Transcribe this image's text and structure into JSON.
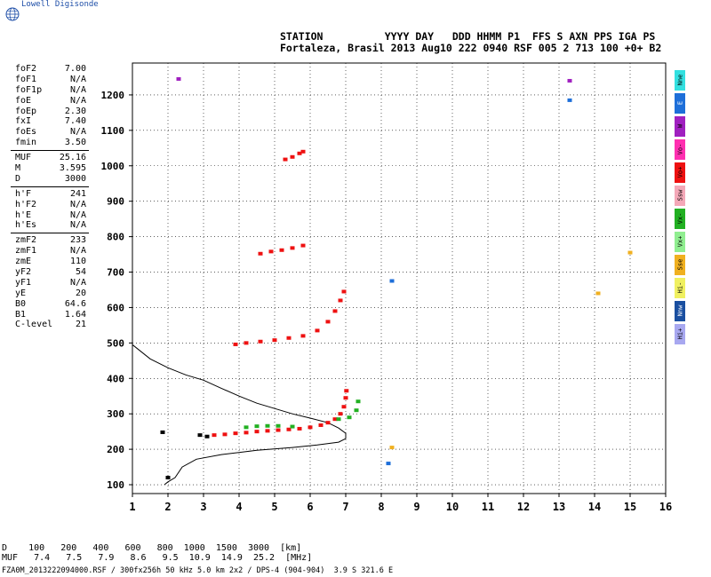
{
  "brand": "Lowell Digisonde",
  "header": {
    "line1": "STATION          YYYY DAY   DDD HHMM P1  FFS S AXN PPS IGA PS",
    "line2": "Fortaleza, Brasil 2013 Aug10 222 0940 RSF 005 2 713 100 +0+ B2"
  },
  "params": [
    {
      "group": [
        {
          "label": "foF2",
          "value": "7.00"
        },
        {
          "label": "foF1",
          "value": "N/A"
        },
        {
          "label": "foF1p",
          "value": "N/A"
        },
        {
          "label": "foE",
          "value": "N/A"
        },
        {
          "label": "foEp",
          "value": "2.30"
        },
        {
          "label": "fxI",
          "value": "7.40"
        },
        {
          "label": "foEs",
          "value": "N/A"
        },
        {
          "label": "fmin",
          "value": "3.50"
        }
      ]
    },
    {
      "group": [
        {
          "label": "MUF",
          "value": "25.16"
        },
        {
          "label": "M",
          "value": "3.595"
        },
        {
          "label": "D",
          "value": "3000"
        }
      ]
    },
    {
      "group": [
        {
          "label": "h'F",
          "value": "241"
        },
        {
          "label": "h'F2",
          "value": "N/A"
        },
        {
          "label": "h'E",
          "value": "N/A"
        },
        {
          "label": "h'Es",
          "value": "N/A"
        }
      ]
    },
    {
      "group": [
        {
          "label": "zmF2",
          "value": "233"
        },
        {
          "label": "zmF1",
          "value": "N/A"
        },
        {
          "label": "zmE",
          "value": "110"
        },
        {
          "label": "yF2",
          "value": "54"
        },
        {
          "label": "yF1",
          "value": "N/A"
        },
        {
          "label": "yE",
          "value": "20"
        },
        {
          "label": "B0",
          "value": "64.6"
        },
        {
          "label": "B1",
          "value": "1.64"
        },
        {
          "label": "C-level",
          "value": "21"
        }
      ]
    }
  ],
  "legend": [
    {
      "label": "Nne",
      "color": "#33e0e0"
    },
    {
      "label": "E",
      "color": "#1e6fd9"
    },
    {
      "label": "W",
      "color": "#a020c0"
    },
    {
      "label": "Vo-",
      "color": "#ff2fb0"
    },
    {
      "label": "Vo+",
      "color": "#ee1111"
    },
    {
      "label": "Ssw",
      "color": "#f4a8b8"
    },
    {
      "label": "Vx-",
      "color": "#22b022"
    },
    {
      "label": "Vx+",
      "color": "#90ee90"
    },
    {
      "label": "Sse",
      "color": "#f0b020"
    },
    {
      "label": "Hi-",
      "color": "#f0f060"
    },
    {
      "label": "Nnw",
      "color": "#1a4fa0"
    },
    {
      "label": "Hi+",
      "color": "#a8a8f0"
    }
  ],
  "bottom": {
    "d_row": "D    100   200   400   600   800  1000  1500  3000  [km]",
    "muf_row": "MUF   7.4   7.5   7.9   8.6   9.5  10.9  14.9  25.2  [MHz]"
  },
  "footer": "FZA0M_2013222094000.RSF / 300fx256h 50 kHz 5.0 km 2x2 / DPS-4 (904-904)  3.9 S 321.6 E",
  "chart_data": {
    "type": "scatter",
    "title": "",
    "xlabel": "",
    "ylabel": "",
    "xlim": [
      1,
      16
    ],
    "ylim": [
      75,
      1290
    ],
    "xticks": [
      1,
      2,
      3,
      4,
      5,
      6,
      7,
      8,
      9,
      10,
      11,
      12,
      13,
      14,
      15,
      16
    ],
    "yticks": [
      100,
      200,
      300,
      400,
      500,
      600,
      700,
      800,
      900,
      1000,
      1100,
      1200
    ],
    "grid": true,
    "series": [
      {
        "color": "#ee1111",
        "points": [
          [
            3.3,
            240
          ],
          [
            3.6,
            242
          ],
          [
            3.9,
            245
          ],
          [
            4.2,
            247
          ],
          [
            4.5,
            250
          ],
          [
            4.8,
            252
          ],
          [
            5.1,
            254
          ],
          [
            5.4,
            256
          ],
          [
            5.7,
            258
          ],
          [
            6.0,
            262
          ],
          [
            6.3,
            268
          ],
          [
            6.5,
            275
          ],
          [
            6.7,
            285
          ],
          [
            6.85,
            300
          ],
          [
            6.95,
            320
          ],
          [
            7.0,
            345
          ],
          [
            7.02,
            365
          ]
        ]
      },
      {
        "color": "#22b022",
        "points": [
          [
            4.2,
            262
          ],
          [
            4.5,
            265
          ],
          [
            4.8,
            266
          ],
          [
            5.1,
            266
          ],
          [
            5.5,
            264
          ],
          [
            6.8,
            285
          ],
          [
            7.1,
            290
          ],
          [
            7.3,
            310
          ],
          [
            7.35,
            335
          ]
        ]
      },
      {
        "color": "#ee1111",
        "points": [
          [
            3.9,
            496
          ],
          [
            4.2,
            500
          ],
          [
            4.6,
            504
          ],
          [
            5.0,
            508
          ],
          [
            5.4,
            514
          ],
          [
            5.8,
            520
          ],
          [
            6.2,
            535
          ],
          [
            6.5,
            560
          ],
          [
            6.7,
            590
          ],
          [
            6.85,
            620
          ],
          [
            6.95,
            645
          ]
        ]
      },
      {
        "color": "#ee1111",
        "points": [
          [
            4.6,
            752
          ],
          [
            4.9,
            758
          ],
          [
            5.2,
            762
          ],
          [
            5.5,
            768
          ],
          [
            5.8,
            775
          ]
        ]
      },
      {
        "color": "#ee1111",
        "points": [
          [
            5.3,
            1018
          ],
          [
            5.5,
            1025
          ],
          [
            5.7,
            1035
          ],
          [
            5.8,
            1040
          ]
        ]
      },
      {
        "color": "#a020c0",
        "points": [
          [
            2.3,
            1245
          ],
          [
            13.3,
            1240
          ]
        ]
      },
      {
        "color": "#1e6fd9",
        "points": [
          [
            13.3,
            1185
          ],
          [
            8.2,
            160
          ],
          [
            8.3,
            675
          ]
        ]
      },
      {
        "color": "#f0b020",
        "points": [
          [
            15.0,
            755
          ],
          [
            14.1,
            640
          ],
          [
            8.3,
            205
          ]
        ]
      },
      {
        "color": "#000000",
        "points": [
          [
            1.85,
            248
          ],
          [
            2.0,
            120
          ],
          [
            2.9,
            240
          ],
          [
            3.1,
            236
          ]
        ]
      }
    ],
    "profile": [
      [
        1.0,
        495
      ],
      [
        1.5,
        455
      ],
      [
        2.0,
        430
      ],
      [
        2.5,
        410
      ],
      [
        3.0,
        395
      ],
      [
        3.5,
        372
      ],
      [
        4.0,
        350
      ],
      [
        4.5,
        330
      ],
      [
        5.0,
        315
      ],
      [
        5.5,
        300
      ],
      [
        6.0,
        288
      ],
      [
        6.5,
        275
      ],
      [
        6.8,
        260
      ],
      [
        7.0,
        245
      ],
      [
        7.0,
        230
      ],
      [
        6.8,
        220
      ],
      [
        6.2,
        212
      ],
      [
        5.5,
        205
      ],
      [
        4.5,
        197
      ],
      [
        3.5,
        185
      ],
      [
        2.8,
        172
      ],
      [
        2.4,
        150
      ],
      [
        2.2,
        120
      ],
      [
        2.0,
        108
      ],
      [
        1.9,
        100
      ]
    ]
  }
}
